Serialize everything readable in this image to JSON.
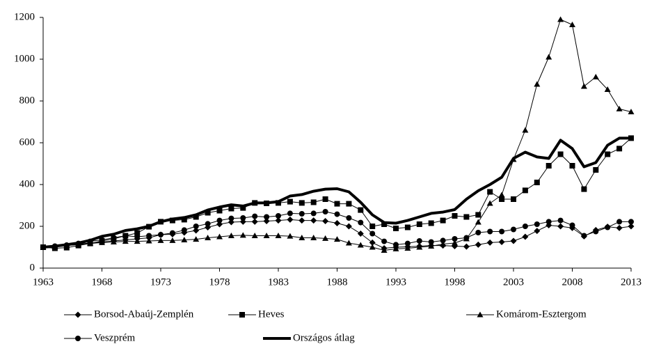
{
  "chart_data": {
    "type": "line",
    "x": [
      1963,
      1964,
      1965,
      1966,
      1967,
      1968,
      1969,
      1970,
      1971,
      1972,
      1973,
      1974,
      1975,
      1976,
      1977,
      1978,
      1979,
      1980,
      1981,
      1982,
      1983,
      1984,
      1985,
      1986,
      1987,
      1988,
      1989,
      1990,
      1991,
      1992,
      1993,
      1994,
      1995,
      1996,
      1997,
      1998,
      1999,
      2000,
      2001,
      2002,
      2003,
      2004,
      2005,
      2006,
      2007,
      2008,
      2009,
      2010,
      2011,
      2012,
      2013
    ],
    "xlim": [
      1963,
      2013
    ],
    "xticks": [
      1963,
      1968,
      1973,
      1978,
      1983,
      1988,
      1993,
      1998,
      2003,
      2008,
      2013
    ],
    "ylim": [
      0,
      1200
    ],
    "yticks": [
      0,
      200,
      400,
      600,
      800,
      1000,
      1200
    ],
    "grid": false,
    "series": [
      {
        "name": "Borsod-Abaúj-Zemplén",
        "color": "#000000",
        "marker": "diamond",
        "width": 1,
        "values": [
          100,
          103,
          108,
          115,
          120,
          125,
          130,
          135,
          140,
          145,
          160,
          162,
          170,
          180,
          195,
          210,
          220,
          222,
          222,
          225,
          228,
          232,
          228,
          228,
          225,
          215,
          200,
          165,
          122,
          95,
          100,
          102,
          105,
          108,
          108,
          105,
          103,
          112,
          122,
          125,
          130,
          150,
          178,
          205,
          200,
          192,
          152,
          182,
          198,
          192,
          200
        ]
      },
      {
        "name": "Heves",
        "color": "#000000",
        "marker": "square",
        "width": 1,
        "values": [
          100,
          95,
          98,
          108,
          118,
          130,
          140,
          155,
          168,
          198,
          222,
          228,
          232,
          245,
          265,
          275,
          285,
          288,
          312,
          310,
          312,
          318,
          312,
          315,
          330,
          308,
          308,
          278,
          200,
          210,
          190,
          195,
          210,
          215,
          228,
          250,
          245,
          255,
          365,
          330,
          330,
          372,
          410,
          490,
          545,
          490,
          378,
          470,
          545,
          572,
          622
        ]
      },
      {
        "name": "Komárom-Esztergom",
        "color": "#000000",
        "marker": "triangle",
        "width": 1,
        "values": [
          100,
          103,
          108,
          112,
          118,
          122,
          125,
          128,
          128,
          130,
          132,
          132,
          135,
          138,
          145,
          150,
          155,
          157,
          155,
          155,
          155,
          153,
          145,
          145,
          142,
          138,
          120,
          110,
          100,
          85,
          92,
          95,
          100,
          105,
          115,
          120,
          140,
          220,
          310,
          350,
          520,
          660,
          880,
          1010,
          1190,
          1165,
          870,
          915,
          855,
          762,
          748
        ]
      },
      {
        "name": "Veszprém",
        "color": "#000000",
        "marker": "circle",
        "width": 1,
        "values": [
          100,
          105,
          110,
          118,
          128,
          135,
          145,
          155,
          150,
          155,
          160,
          168,
          182,
          200,
          212,
          228,
          238,
          240,
          248,
          245,
          250,
          262,
          260,
          262,
          270,
          258,
          240,
          218,
          165,
          128,
          112,
          118,
          130,
          125,
          132,
          140,
          145,
          170,
          175,
          175,
          185,
          200,
          210,
          222,
          228,
          205,
          155,
          175,
          195,
          222,
          222
        ]
      },
      {
        "name": "Országos átlag",
        "color": "#000000",
        "marker": "none",
        "width": 4,
        "values": [
          100,
          105,
          112,
          120,
          133,
          152,
          162,
          180,
          188,
          200,
          222,
          235,
          242,
          255,
          278,
          292,
          303,
          297,
          312,
          312,
          318,
          345,
          352,
          368,
          378,
          380,
          365,
          315,
          255,
          218,
          215,
          228,
          245,
          262,
          268,
          280,
          330,
          370,
          400,
          435,
          525,
          555,
          532,
          525,
          612,
          572,
          485,
          505,
          588,
          622,
          622
        ]
      }
    ]
  }
}
